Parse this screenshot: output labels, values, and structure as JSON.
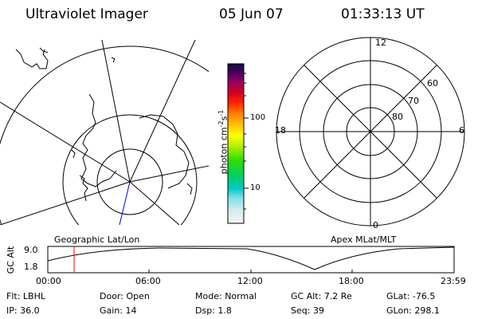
{
  "header": {
    "title": "Ultraviolet Imager",
    "date": "05 Jun 07",
    "time": "01:33:13 UT"
  },
  "colorbar": {
    "unit_main": "photon cm",
    "unit_sup1": "-2",
    "unit_mid": "s",
    "unit_sup2": "-1",
    "ticks": [
      {
        "label": "100",
        "value": 100
      },
      {
        "label": "10",
        "value": 10
      }
    ]
  },
  "polar_plot": {
    "mlt_labels": {
      "top": "12",
      "left": "18",
      "right": "6",
      "bottom": "0"
    },
    "lat_labels": [
      {
        "label": "60",
        "value": 60
      },
      {
        "label": "70",
        "value": 70
      },
      {
        "label": "80",
        "value": 80
      }
    ],
    "caption": "Apex MLat/MLT"
  },
  "geo_plot": {
    "caption": "Geographic Lat/Lon"
  },
  "altitude_chart": {
    "ylabel": "GC Alt",
    "yticks": [
      "9.0",
      "1.8"
    ],
    "xticks": [
      "00:00",
      "06:00",
      "12:00",
      "18:00",
      "23:59"
    ],
    "marker_time": "01:33"
  },
  "footer": {
    "row1": [
      {
        "key": "Flt:",
        "value": "LBHL"
      },
      {
        "key": "Door:",
        "value": "Open"
      },
      {
        "key": "Mode:",
        "value": "Normal"
      },
      {
        "key": "GC Alt:",
        "value": "7.2 Re"
      },
      {
        "key": "GLat:",
        "value": "-76.5"
      }
    ],
    "row2": [
      {
        "key": "IP:",
        "value": "36.0"
      },
      {
        "key": "Gain:",
        "value": "14"
      },
      {
        "key": "Dsp:",
        "value": "1.8"
      },
      {
        "key": "Seq:",
        "value": "39"
      },
      {
        "key": "GLon:",
        "value": "298.1"
      }
    ]
  },
  "colors": {
    "ink": "#000000",
    "marker": "#ff0000",
    "track": "#0000cc"
  }
}
